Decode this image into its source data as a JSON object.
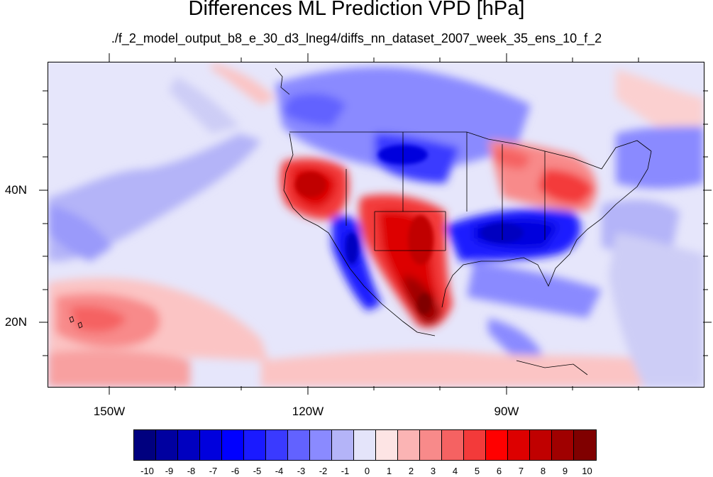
{
  "title": "Differences ML Prediction VPD [hPa]",
  "subtitle": "./f_2_model_output_b8_e_30_d3_lneg4/diffs_nn_dataset_2007_week_35_ens_10_f_2",
  "map": {
    "projection": "cylindrical equidistant",
    "lon_range": [
      -160,
      -65
    ],
    "lat_range": [
      11,
      58
    ],
    "lat_ticks": [
      "40N",
      "20N"
    ],
    "lon_ticks": [
      "150W",
      "120W",
      "90W"
    ]
  },
  "colorbar": {
    "labels": [
      "-10",
      "-9",
      "-8",
      "-7",
      "-6",
      "-5",
      "-4",
      "-3",
      "-2",
      "-1",
      "0",
      "1",
      "2",
      "3",
      "4",
      "5",
      "6",
      "7",
      "8",
      "9",
      "10"
    ],
    "colors": [
      "#00007f",
      "#0000a0",
      "#0000c0",
      "#0000dd",
      "#0000ff",
      "#1a1aff",
      "#3a3aff",
      "#6262ff",
      "#8a8aff",
      "#b4b4f8",
      "#e4e4fa",
      "#fde4e4",
      "#fbb4b4",
      "#f88a8a",
      "#f56262",
      "#f33a3a",
      "#ff0000",
      "#dd0000",
      "#c00000",
      "#a00000",
      "#800000"
    ]
  }
}
